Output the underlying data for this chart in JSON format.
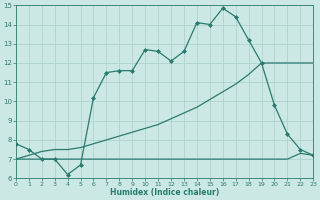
{
  "line1_x": [
    0,
    1,
    2,
    3,
    4,
    5,
    6,
    7,
    8,
    9,
    10,
    11,
    12,
    13,
    14,
    15,
    16,
    17,
    18,
    19,
    20,
    21,
    22,
    23
  ],
  "line1_y": [
    7.8,
    7.5,
    7.0,
    7.0,
    6.2,
    6.7,
    10.2,
    11.5,
    11.6,
    11.6,
    12.7,
    12.6,
    12.1,
    12.6,
    14.1,
    14.0,
    14.85,
    14.4,
    13.2,
    12.0,
    9.8,
    8.3,
    7.5,
    7.2
  ],
  "line2_x": [
    0,
    1,
    2,
    3,
    4,
    5,
    6,
    7,
    8,
    9,
    10,
    11,
    12,
    13,
    14,
    15,
    16,
    17,
    18,
    19,
    20,
    21,
    22,
    23
  ],
  "line2_y": [
    7.0,
    7.2,
    7.4,
    7.5,
    7.5,
    7.6,
    7.8,
    8.0,
    8.2,
    8.4,
    8.6,
    8.8,
    9.1,
    9.4,
    9.7,
    10.1,
    10.5,
    10.9,
    11.4,
    12.0,
    12.0,
    12.0,
    12.0,
    12.0
  ],
  "line3_x": [
    0,
    1,
    2,
    3,
    4,
    5,
    6,
    7,
    8,
    9,
    10,
    11,
    12,
    13,
    14,
    15,
    16,
    17,
    18,
    19,
    20,
    21,
    22,
    23
  ],
  "line3_y": [
    7.0,
    7.0,
    7.0,
    7.0,
    7.0,
    7.0,
    7.0,
    7.0,
    7.0,
    7.0,
    7.0,
    7.0,
    7.0,
    7.0,
    7.0,
    7.0,
    7.0,
    7.0,
    7.0,
    7.0,
    7.0,
    7.0,
    7.3,
    7.2
  ],
  "color": "#2a7b6e",
  "bg_color": "#cce8e5",
  "grid_color": "#aacfcc",
  "xlabel": "Humidex (Indice chaleur)",
  "xlim": [
    0,
    23
  ],
  "ylim": [
    6,
    15
  ],
  "yticks": [
    6,
    7,
    8,
    9,
    10,
    11,
    12,
    13,
    14,
    15
  ],
  "xticks": [
    0,
    1,
    2,
    3,
    4,
    5,
    6,
    7,
    8,
    9,
    10,
    11,
    12,
    13,
    14,
    15,
    16,
    17,
    18,
    19,
    20,
    21,
    22,
    23
  ]
}
